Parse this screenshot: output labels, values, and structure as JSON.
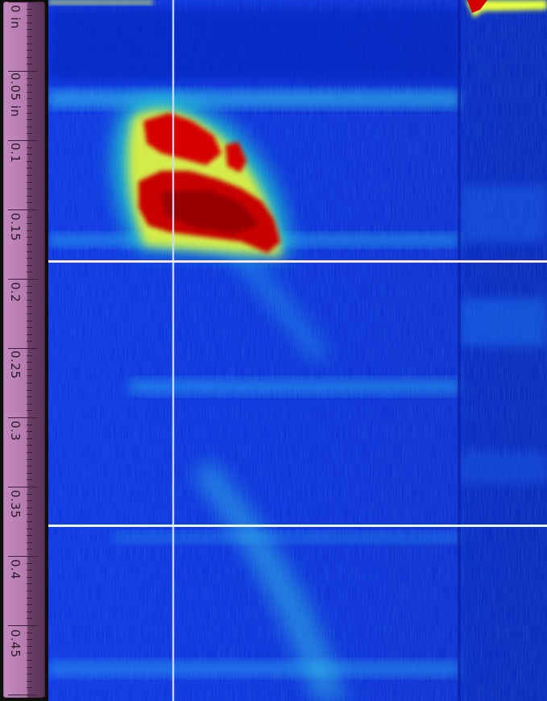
{
  "ruler": {
    "unit": "in",
    "labels": [
      "0 in",
      "0.05 in",
      "0.1",
      "0.15",
      "0.2",
      "0.25",
      "0.3",
      "0.35",
      "0.4",
      "0.45"
    ]
  },
  "colors": {
    "ruler_fill": "#c58bc0",
    "background_blue": "#0a2bd8",
    "hot_red": "#d40000",
    "cursor_vertical": "#c9d4ff",
    "cursor_upper": "#f2c6d8",
    "cursor_lower": "#c9f0e8"
  },
  "cursors": {
    "vertical": "vertical-cursor",
    "horizontal_upper": "horizontal-cursor-upper",
    "horizontal_lower": "horizontal-cursor-lower"
  }
}
